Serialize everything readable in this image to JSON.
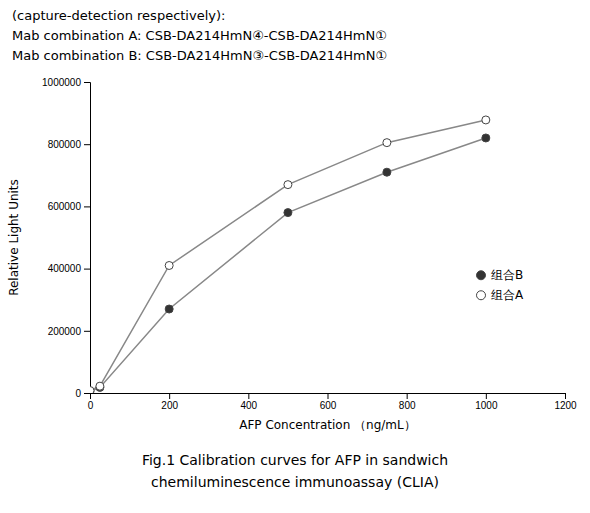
{
  "chart_data": {
    "type": "line",
    "subtitle": [
      "(capture-detection respectively):",
      "Mab combination A: CSB-DA214HmN④-CSB-DA214HmN①",
      "Mab combination B: CSB-DA214HmN③-CSB-DA214HmN①"
    ],
    "title": [
      "Fig.1 Calibration curves for AFP in sandwich",
      "chemiluminescence immunoassay (CLIA)"
    ],
    "x": [
      0,
      25,
      200,
      500,
      750,
      1000
    ],
    "series": [
      {
        "name": "组合B",
        "color": "#333333",
        "marker": "circle",
        "values": [
          5000,
          18000,
          270000,
          580000,
          710000,
          820000
        ]
      },
      {
        "name": "组合A",
        "color": "#ffffff",
        "marker": "circle",
        "values": [
          8000,
          22000,
          410000,
          670000,
          805000,
          878000
        ]
      }
    ],
    "color": "#888888",
    "xlabel": "AFP Concentration （ng/mL）",
    "ylabel": "Relative Light Units",
    "xlim": [
      0,
      1200
    ],
    "ylim": [
      0,
      1000000
    ],
    "xticks": [
      0,
      200,
      400,
      600,
      800,
      1000,
      1200
    ],
    "yticks": [
      0,
      200000,
      400000,
      600000,
      800000,
      1000000
    ],
    "legend": "lower right"
  }
}
